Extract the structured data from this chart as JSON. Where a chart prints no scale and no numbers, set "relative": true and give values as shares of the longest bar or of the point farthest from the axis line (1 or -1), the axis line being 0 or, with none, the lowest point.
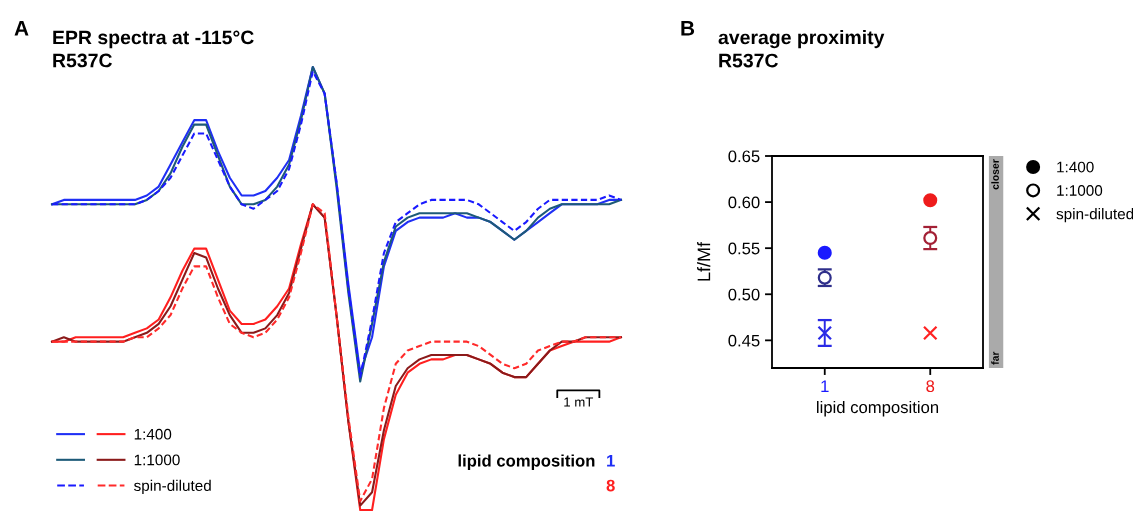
{
  "chart_data": [
    {
      "type": "line",
      "title": "EPR spectra at -115°C\nR537C",
      "relative": true,
      "legend": "bottom left",
      "annotations": [
        "A",
        "1 mT",
        "lipid composition",
        "1",
        "8"
      ],
      "categories": [
        null,
        null,
        null,
        null,
        null,
        null,
        null,
        null,
        null,
        null,
        null,
        null,
        null,
        null,
        null,
        null,
        null,
        null,
        null,
        null,
        null,
        null,
        null,
        null,
        null,
        null,
        null,
        null,
        null,
        null,
        null,
        null,
        null,
        null,
        null,
        null,
        null,
        null,
        null,
        null,
        null,
        null,
        null,
        null,
        null,
        null,
        null,
        null,
        null
      ],
      "series": [
        {
          "color": "#1f2ff5",
          "line_style": "solid",
          "values": [
            0.69,
            0.7,
            0.7,
            0.7,
            0.7,
            0.7,
            0.7,
            0.7,
            0.71,
            0.73,
            0.78,
            0.83,
            0.88,
            0.88,
            0.81,
            0.75,
            0.71,
            0.71,
            0.72,
            0.75,
            0.79,
            0.89,
            1.0,
            0.94,
            0.74,
            0.51,
            0.31,
            0.39,
            0.55,
            0.63,
            0.65,
            0.66,
            0.66,
            0.66,
            0.67,
            0.66,
            0.66,
            0.65,
            0.63,
            0.61,
            0.63,
            0.65,
            0.67,
            0.69,
            0.69,
            0.69,
            0.69,
            0.7,
            0.7
          ]
        },
        {
          "color": "#1d5a78",
          "line_style": "solid",
          "values": [
            0.69,
            0.69,
            0.69,
            0.69,
            0.69,
            0.69,
            0.69,
            0.69,
            0.7,
            0.72,
            0.76,
            0.82,
            0.87,
            0.87,
            0.8,
            0.73,
            0.69,
            0.69,
            0.7,
            0.73,
            0.78,
            0.88,
            1.0,
            0.94,
            0.73,
            0.49,
            0.29,
            0.42,
            0.56,
            0.64,
            0.66,
            0.67,
            0.67,
            0.67,
            0.67,
            0.67,
            0.66,
            0.65,
            0.63,
            0.61,
            0.63,
            0.66,
            0.68,
            0.69,
            0.69,
            0.69,
            0.69,
            0.69,
            0.7
          ]
        },
        {
          "color": "#1a1aff",
          "line_style": "dashed",
          "values": [
            0.69,
            0.69,
            0.69,
            0.69,
            0.69,
            0.69,
            0.69,
            0.69,
            0.7,
            0.72,
            0.75,
            0.8,
            0.85,
            0.85,
            0.79,
            0.73,
            0.69,
            0.68,
            0.7,
            0.72,
            0.77,
            0.87,
            0.99,
            0.94,
            0.74,
            0.5,
            0.3,
            0.43,
            0.58,
            0.65,
            0.67,
            0.69,
            0.7,
            0.7,
            0.7,
            0.7,
            0.69,
            0.67,
            0.65,
            0.63,
            0.65,
            0.68,
            0.7,
            0.7,
            0.7,
            0.7,
            0.7,
            0.71,
            0.7
          ]
        },
        {
          "name": "1:400",
          "color": "#ff1f1f",
          "line_style": "solid",
          "values": [
            0.38,
            0.38,
            0.39,
            0.39,
            0.39,
            0.39,
            0.39,
            0.4,
            0.41,
            0.43,
            0.48,
            0.54,
            0.59,
            0.59,
            0.52,
            0.45,
            0.42,
            0.42,
            0.43,
            0.46,
            0.5,
            0.6,
            0.69,
            0.66,
            0.44,
            0.2,
            0.0,
            0.0,
            0.16,
            0.26,
            0.31,
            0.33,
            0.34,
            0.34,
            0.35,
            0.35,
            0.34,
            0.33,
            0.31,
            0.3,
            0.3,
            0.33,
            0.36,
            0.37,
            0.38,
            0.38,
            0.38,
            0.38,
            0.39
          ]
        },
        {
          "name": "1:1000",
          "color": "#8b1a1a",
          "line_style": "solid",
          "values": [
            0.38,
            0.39,
            0.38,
            0.38,
            0.38,
            0.38,
            0.38,
            0.39,
            0.4,
            0.42,
            0.46,
            0.52,
            0.58,
            0.57,
            0.5,
            0.44,
            0.4,
            0.4,
            0.41,
            0.44,
            0.49,
            0.59,
            0.69,
            0.66,
            0.44,
            0.2,
            0.01,
            0.04,
            0.18,
            0.28,
            0.32,
            0.34,
            0.35,
            0.35,
            0.35,
            0.35,
            0.34,
            0.33,
            0.31,
            0.3,
            0.3,
            0.33,
            0.36,
            0.38,
            0.38,
            0.39,
            0.39,
            0.39,
            0.39
          ]
        },
        {
          "name": "spin-diluted",
          "color": "#ff2a2a",
          "line_style": "dashed",
          "values": [
            0.38,
            0.38,
            0.38,
            0.38,
            0.38,
            0.38,
            0.38,
            0.39,
            0.39,
            0.41,
            0.44,
            0.5,
            0.55,
            0.55,
            0.48,
            0.42,
            0.4,
            0.39,
            0.4,
            0.43,
            0.48,
            0.58,
            0.69,
            0.67,
            0.44,
            0.21,
            0.02,
            0.07,
            0.23,
            0.33,
            0.36,
            0.37,
            0.38,
            0.38,
            0.38,
            0.38,
            0.37,
            0.35,
            0.33,
            0.32,
            0.33,
            0.36,
            0.37,
            0.38,
            0.38,
            0.39,
            0.39,
            0.39,
            0.39
          ]
        }
      ]
    },
    {
      "type": "scatter",
      "title": "average proximity\nR537C",
      "xlabel": "lipid composition",
      "ylabel": "Lf/Mf",
      "legend": "top right",
      "annotations": [
        "B",
        "closer",
        "far"
      ],
      "categories": [
        "1",
        "8"
      ],
      "ylim": [
        0.42,
        0.65
      ],
      "yticks": [
        0.45,
        {
          "value": 0.5,
          "label": "0.50"
        },
        0.55,
        {
          "value": 0.6,
          "label": "0.60"
        },
        0.65
      ],
      "series": [
        {
          "name": "1:400",
          "marker": "circle",
          "colors": [
            "#1a1aff",
            "#ee1c1c"
          ],
          "values": [
            0.545,
            0.602
          ]
        },
        {
          "name": "1:1000",
          "marker": "circle_open",
          "colors": [
            "#2e2e8a",
            "#a32035"
          ],
          "values": [
            0.518,
            0.561
          ],
          "errors": [
            0.009,
            0.012
          ]
        },
        {
          "name": "spin-diluted",
          "marker": "cross",
          "colors": [
            "#2a2ae6",
            "#ff2222"
          ],
          "values": [
            0.458,
            0.458
          ],
          "errors": [
            0.014,
            null
          ]
        }
      ]
    }
  ]
}
